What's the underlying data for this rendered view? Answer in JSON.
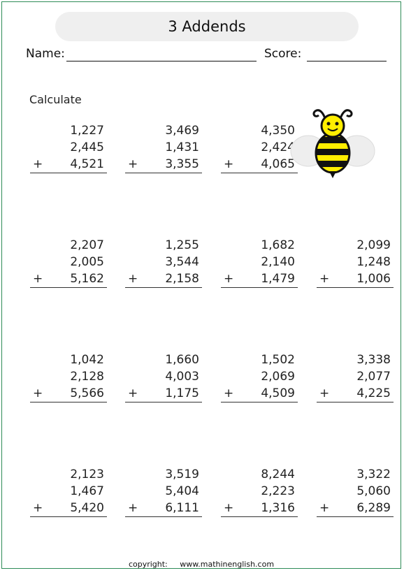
{
  "title": "3 Addends",
  "name_label": "Name:",
  "score_label": "Score:",
  "instruction": "Calculate",
  "problems": [
    {
      "a": "1,227",
      "b": "2,445",
      "c": "4,521"
    },
    {
      "a": "3,469",
      "b": "1,431",
      "c": "3,355"
    },
    {
      "a": "4,350",
      "b": "2,424",
      "c": "4,065"
    },
    {
      "a": "2,207",
      "b": "2,005",
      "c": "5,162"
    },
    {
      "a": "1,255",
      "b": "3,544",
      "c": "2,158"
    },
    {
      "a": "1,682",
      "b": "2,140",
      "c": "1,479"
    },
    {
      "a": "2,099",
      "b": "1,248",
      "c": "1,006"
    },
    {
      "a": "1,042",
      "b": "2,128",
      "c": "5,566"
    },
    {
      "a": "1,660",
      "b": "4,003",
      "c": "1,175"
    },
    {
      "a": "1,502",
      "b": "2,069",
      "c": "4,509"
    },
    {
      "a": "3,338",
      "b": "2,077",
      "c": "4,225"
    },
    {
      "a": "2,123",
      "b": "1,467",
      "c": "5,420"
    },
    {
      "a": "3,519",
      "b": "5,404",
      "c": "6,111"
    },
    {
      "a": "8,244",
      "b": "2,223",
      "c": "1,316"
    },
    {
      "a": "3,322",
      "b": "5,060",
      "c": "6,289"
    }
  ],
  "operator": "+",
  "footer": {
    "copyright": "copyright:",
    "site": "www.mathinenglish.com"
  },
  "colors": {
    "border": "#2e8b57",
    "bee_yellow": "#ffee00",
    "bee_black": "#111111",
    "wings": "#eeeeee"
  },
  "decoration": "bee-icon"
}
